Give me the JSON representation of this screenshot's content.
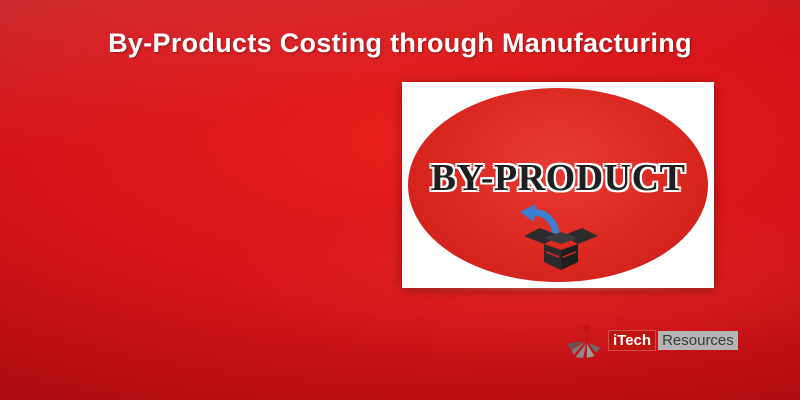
{
  "page": {
    "title": "By-Products Costing through Manufacturing"
  },
  "card": {
    "label": "BY-PRODUCT",
    "icon": "open-box-with-arrow-icon"
  },
  "logo": {
    "icon": "itech-logo-icon",
    "name_part1": "iTech",
    "name_part2": "Resources"
  },
  "colors": {
    "background": "#d4141a",
    "ellipse": "#d9261f",
    "box_icon": "#2b2b2b",
    "arrow_icon": "#3a7fd0",
    "title_text": "#ffffff"
  }
}
